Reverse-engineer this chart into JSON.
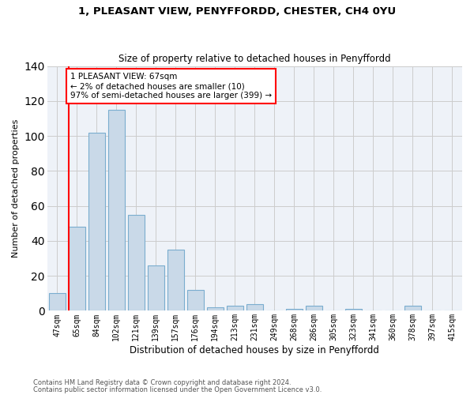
{
  "title1": "1, PLEASANT VIEW, PENYFFORDD, CHESTER, CH4 0YU",
  "title2": "Size of property relative to detached houses in Penyffordd",
  "xlabel": "Distribution of detached houses by size in Penyffordd",
  "ylabel": "Number of detached properties",
  "categories": [
    "47sqm",
    "65sqm",
    "84sqm",
    "102sqm",
    "121sqm",
    "139sqm",
    "157sqm",
    "176sqm",
    "194sqm",
    "213sqm",
    "231sqm",
    "249sqm",
    "268sqm",
    "286sqm",
    "305sqm",
    "323sqm",
    "341sqm",
    "360sqm",
    "378sqm",
    "397sqm",
    "415sqm"
  ],
  "values": [
    10,
    48,
    102,
    115,
    55,
    26,
    35,
    12,
    2,
    3,
    4,
    0,
    1,
    3,
    0,
    1,
    0,
    0,
    3,
    0,
    0
  ],
  "bar_color": "#c9d9e8",
  "bar_edge_color": "#7aadcf",
  "vline_index": 1,
  "property_sqm": 67,
  "annotation_text": "1 PLEASANT VIEW: 67sqm\n← 2% of detached houses are smaller (10)\n97% of semi-detached houses are larger (399) →",
  "annotation_box_color": "white",
  "annotation_box_edge_color": "red",
  "vline_color": "red",
  "ylim": [
    0,
    140
  ],
  "yticks": [
    0,
    20,
    40,
    60,
    80,
    100,
    120,
    140
  ],
  "grid_color": "#cccccc",
  "bg_color": "#eef2f8",
  "footnote1": "Contains HM Land Registry data © Crown copyright and database right 2024.",
  "footnote2": "Contains public sector information licensed under the Open Government Licence v3.0."
}
